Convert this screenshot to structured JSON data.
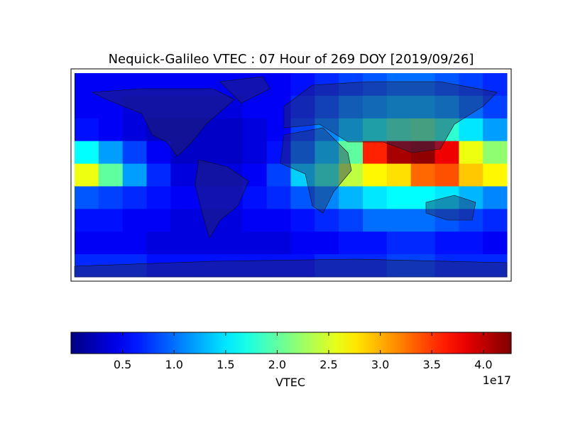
{
  "chart_data": {
    "type": "heatmap",
    "title": "Nequick-Galileo VTEC : 07 Hour of 269 DOY [2019/09/26]",
    "colormap": "jet",
    "lon_edges": [
      -180,
      -160,
      -140,
      -120,
      -100,
      -80,
      -60,
      -40,
      -20,
      0,
      20,
      40,
      60,
      80,
      100,
      120,
      140,
      160,
      180
    ],
    "lat_edges": [
      90,
      70,
      50,
      30,
      10,
      -10,
      -30,
      -50,
      -70,
      -90
    ],
    "values": [
      [
        0.5,
        0.5,
        0.5,
        0.5,
        0.5,
        0.5,
        0.5,
        0.5,
        0.5,
        0.6,
        0.7,
        0.8,
        0.9,
        1.0,
        1.0,
        0.9,
        0.8,
        0.7
      ],
      [
        0.5,
        0.5,
        0.4,
        0.4,
        0.4,
        0.4,
        0.4,
        0.5,
        0.5,
        0.7,
        0.9,
        1.1,
        1.2,
        1.3,
        1.3,
        1.2,
        1.0,
        0.8
      ],
      [
        0.6,
        0.5,
        0.4,
        0.3,
        0.3,
        0.3,
        0.3,
        0.4,
        0.5,
        0.8,
        1.1,
        1.4,
        1.7,
        1.9,
        2.0,
        1.8,
        1.5,
        1.2
      ],
      [
        1.6,
        1.2,
        0.8,
        0.5,
        0.3,
        0.3,
        0.3,
        0.4,
        0.6,
        1.0,
        1.4,
        2.0,
        3.6,
        4.1,
        4.2,
        3.8,
        2.6,
        2.2
      ],
      [
        2.6,
        2.0,
        1.2,
        0.7,
        0.4,
        0.4,
        0.4,
        0.5,
        0.8,
        1.4,
        1.8,
        2.4,
        2.7,
        2.8,
        3.3,
        3.4,
        2.9,
        2.7
      ],
      [
        0.9,
        0.8,
        0.7,
        0.6,
        0.5,
        0.5,
        0.5,
        0.6,
        0.7,
        0.9,
        1.1,
        1.3,
        1.5,
        1.6,
        1.6,
        1.5,
        1.3,
        1.1
      ],
      [
        0.6,
        0.6,
        0.5,
        0.5,
        0.4,
        0.4,
        0.4,
        0.5,
        0.5,
        0.6,
        0.7,
        0.8,
        1.0,
        1.0,
        1.0,
        0.9,
        0.8,
        0.7
      ],
      [
        0.5,
        0.5,
        0.5,
        0.4,
        0.4,
        0.4,
        0.4,
        0.4,
        0.4,
        0.5,
        0.5,
        0.6,
        0.6,
        0.7,
        0.7,
        0.6,
        0.6,
        0.5
      ],
      [
        0.7,
        0.7,
        0.7,
        0.6,
        0.6,
        0.6,
        0.6,
        0.6,
        0.6,
        0.6,
        0.7,
        0.7,
        0.7,
        0.8,
        0.8,
        0.7,
        0.7,
        0.7
      ]
    ],
    "colorbar": {
      "label": "VTEC",
      "clim": [
        0,
        4.27
      ],
      "ticks": [
        0.5,
        {
          "value": 1,
          "label": "1.0"
        },
        1.5,
        {
          "value": 2,
          "label": "2.0"
        },
        2.5,
        {
          "value": 3,
          "label": "3.0"
        },
        3.5,
        {
          "value": 4,
          "label": "4.0"
        }
      ],
      "offset_label": "1e17"
    }
  }
}
